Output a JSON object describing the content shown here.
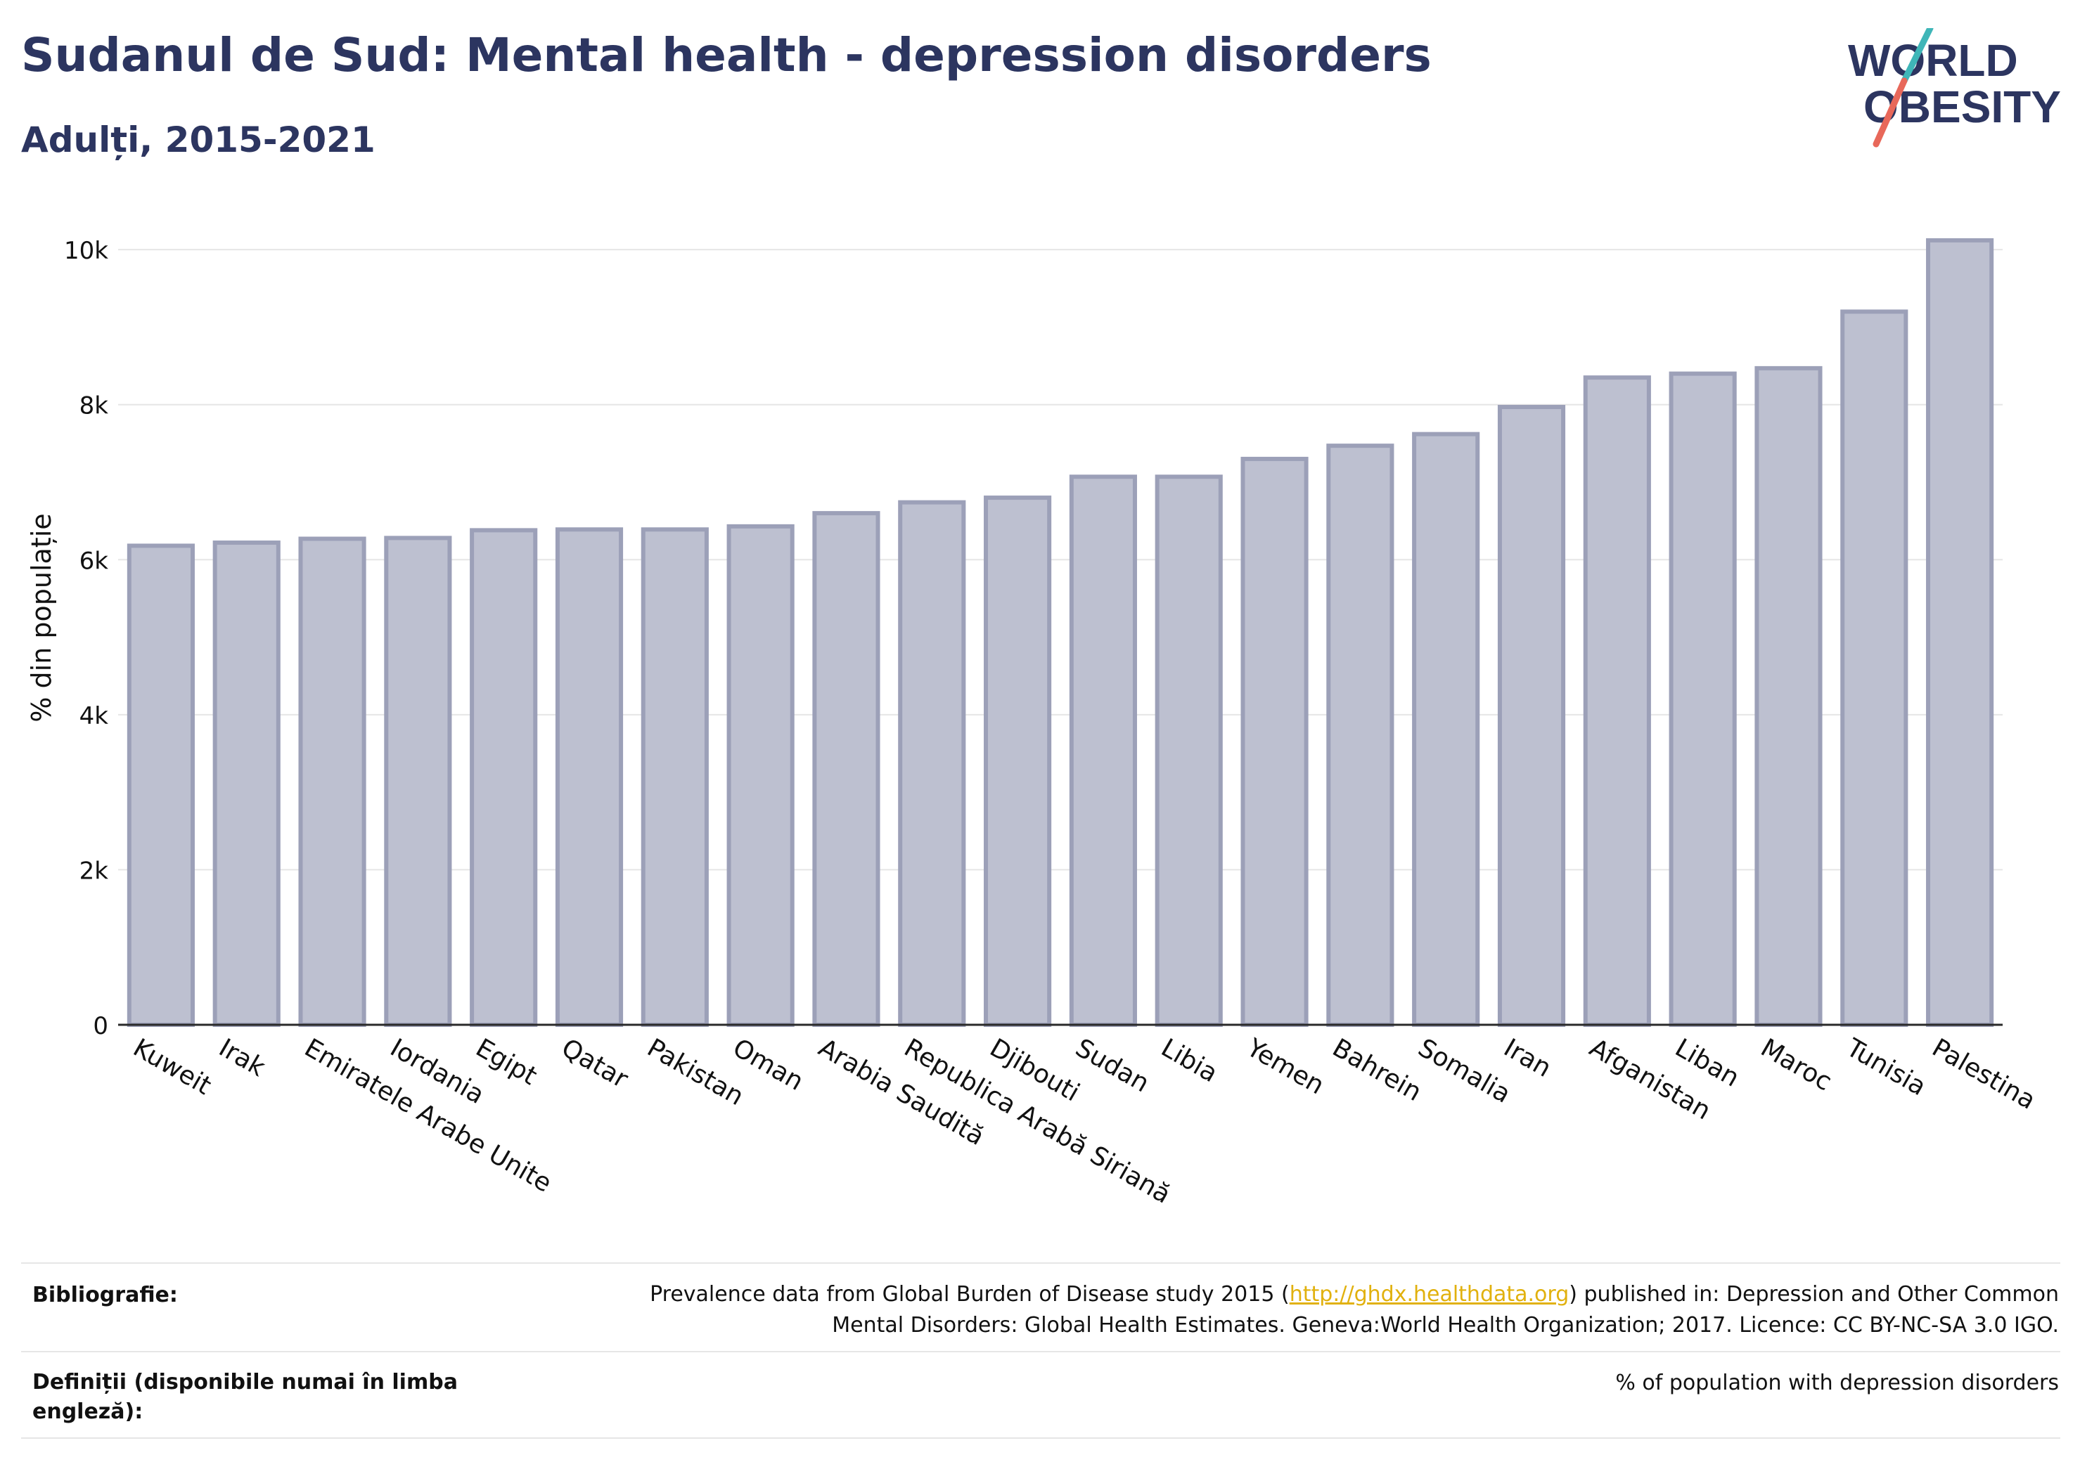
{
  "header": {
    "title": "Sudanul de Sud: Mental health - depression disorders",
    "subtitle": "Adulți, 2015-2021"
  },
  "logo": {
    "line1": "WORLD",
    "line2": "OBESITY"
  },
  "colors": {
    "text": "#2c3560",
    "bar_fill": "#bdc0d0",
    "bar_stroke": "#9ca0b8",
    "grid": "#e6e6e6",
    "link": "#e1b10e",
    "logo_slash_top": "#3fb6b8",
    "logo_slash_bottom": "#e8685a"
  },
  "chart_data": {
    "type": "bar",
    "ylabel": "% din populație",
    "xlabel": "",
    "ylim": [
      0,
      10500
    ],
    "yticks": [
      0,
      2000,
      4000,
      6000,
      8000,
      10000
    ],
    "ytick_labels": [
      "0",
      "2k",
      "4k",
      "6k",
      "8k",
      "10k"
    ],
    "grid": true,
    "categories": [
      "Kuweit",
      "Irak",
      "Emiratele Arabe Unite",
      "Iordania",
      "Egipt",
      "Qatar",
      "Pakistan",
      "Oman",
      "Arabia Saudită",
      "Republica Arabă Siriană",
      "Djibouti",
      "Sudan",
      "Libia",
      "Yemen",
      "Bahrein",
      "Somalia",
      "Iran",
      "Afganistan",
      "Liban",
      "Maroc",
      "Tunisia",
      "Palestina"
    ],
    "values": [
      6180,
      6220,
      6270,
      6280,
      6380,
      6390,
      6390,
      6430,
      6600,
      6740,
      6800,
      7070,
      7070,
      7300,
      7470,
      7620,
      7970,
      8350,
      8400,
      8470,
      9200,
      10120
    ]
  },
  "footer": {
    "bibliography_label": "Bibliografie:",
    "bibliography_pre": "Prevalence data from Global Burden of Disease study 2015 (",
    "bibliography_link": "http://ghdx.healthdata.org",
    "bibliography_post": ") published in: Depression and Other Common",
    "bibliography_line2": "Mental Disorders: Global Health Estimates. Geneva:World Health Organization; 2017. Licence: CC BY-NC-SA 3.0 IGO.",
    "definitions_label_line1": "Definiții (disponibile numai în limba",
    "definitions_label_line2": "engleză):",
    "definitions_text": "% of population with depression disorders"
  }
}
